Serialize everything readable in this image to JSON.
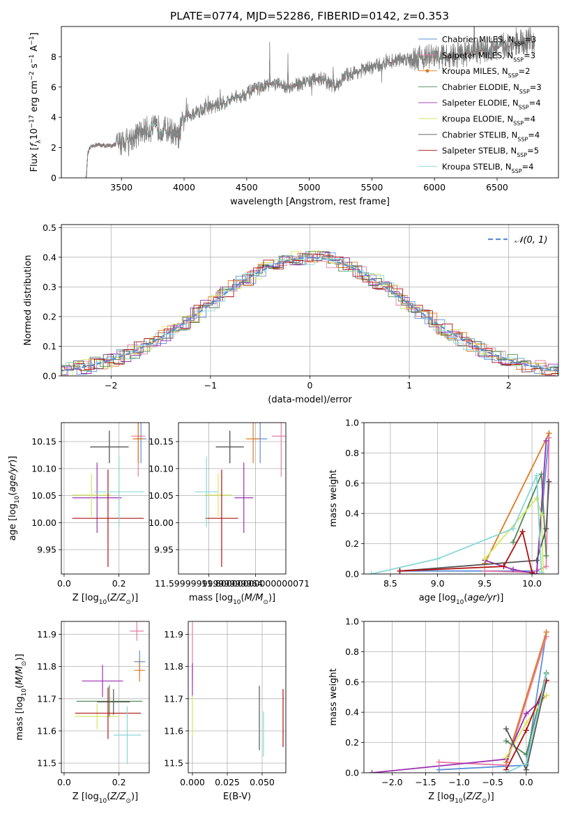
{
  "figure": {
    "title": "PLATE=0774, MJD=52286, FIBERID=0142, z=0.353"
  },
  "colors": {
    "chab_miles": "#5b8fd6",
    "salp_miles": "#e87aa6",
    "krou_miles": "#e07a1f",
    "chab_elodie": "#4f8a55",
    "salp_elodie": "#9b30b0",
    "krou_elodie": "#d6e85a",
    "chab_stelib": "#555555",
    "salp_stelib": "#b01010",
    "krou_stelib": "#88d8d8",
    "gauss": "#5b8fd6",
    "grid": "#b0b0b0"
  },
  "models": [
    {
      "key": "chab_miles",
      "label": "Chabrier MILES, N",
      "sub": "SSP",
      "n": "=3"
    },
    {
      "key": "salp_miles",
      "label": "Salpeter MILES, N",
      "sub": "SSP",
      "n": "=3"
    },
    {
      "key": "krou_miles",
      "label": "Kroupa MILES, N",
      "sub": "SSP",
      "n": "=2"
    },
    {
      "key": "chab_elodie",
      "label": "Chabrier ELODIE, N",
      "sub": "SSP",
      "n": "=3"
    },
    {
      "key": "salp_elodie",
      "label": "Salpeter ELODIE, N",
      "sub": "SSP",
      "n": "=4"
    },
    {
      "key": "krou_elodie",
      "label": "Kroupa ELODIE, N",
      "sub": "SSP",
      "n": "=4"
    },
    {
      "key": "chab_stelib",
      "label": "Chabrier STELIB, N",
      "sub": "SSP",
      "n": "=4"
    },
    {
      "key": "salp_stelib",
      "label": "Salpeter STELIB, N",
      "sub": "SSP",
      "n": "=5"
    },
    {
      "key": "krou_stelib",
      "label": "Kroupa STELIB, N",
      "sub": "SSP",
      "n": "=4"
    }
  ],
  "chart_data": [
    {
      "id": "spectrum",
      "type": "line",
      "xlabel": "wavelength [Angstrom, rest frame]",
      "ylabel": "Flux [f_λ10^-17 erg cm^-2 s^-1 A^-1]",
      "xlim": [
        3020,
        6990
      ],
      "ylim": [
        0,
        10
      ],
      "xticks": [
        3500,
        4000,
        4500,
        5000,
        5500,
        6000,
        6500
      ],
      "yticks": [
        0,
        2,
        4,
        6,
        8
      ],
      "grid": false,
      "legend": "upper right",
      "continuum": [
        [
          3220,
          0
        ],
        [
          3230,
          1.6
        ],
        [
          3250,
          2.0
        ],
        [
          3300,
          2.2
        ],
        [
          3400,
          2.1
        ],
        [
          3500,
          2.3
        ],
        [
          3600,
          2.7
        ],
        [
          3700,
          3.2
        ],
        [
          3800,
          3.3
        ],
        [
          3900,
          3.1
        ],
        [
          3950,
          2.6
        ],
        [
          4000,
          3.9
        ],
        [
          4100,
          4.4
        ],
        [
          4300,
          4.9
        ],
        [
          4500,
          5.6
        ],
        [
          4700,
          6.2
        ],
        [
          4860,
          6.0
        ],
        [
          4950,
          6.3
        ],
        [
          5100,
          6.6
        ],
        [
          5200,
          6.0
        ],
        [
          5300,
          6.8
        ],
        [
          5500,
          7.3
        ],
        [
          5700,
          7.8
        ],
        [
          5900,
          8.0
        ],
        [
          6100,
          8.0
        ],
        [
          6300,
          8.3
        ],
        [
          6500,
          8.6
        ],
        [
          6700,
          9.0
        ],
        [
          6790,
          9.1
        ]
      ]
    },
    {
      "id": "residuals",
      "type": "histogram",
      "xlabel": "(data-model)/error",
      "ylabel": "Normed distribution",
      "xlim": [
        -2.5,
        2.5
      ],
      "ylim": [
        0,
        0.51
      ],
      "xticks": [
        -2,
        -1,
        0,
        1,
        2
      ],
      "yticks": [
        0.0,
        0.1,
        0.2,
        0.3,
        0.4,
        0.5
      ],
      "grid": true,
      "legend_label": "𝒩(0, 1)",
      "bin_width": 0.1
    },
    {
      "id": "age_vs_z",
      "type": "errorbar",
      "xlabel": "Z [log10(Z/Z⊙)]",
      "ylabel": "age  [log10(age/yr)]",
      "xlim": [
        -0.01,
        0.31
      ],
      "ylim": [
        9.905,
        10.185
      ],
      "xticks": [
        0.0,
        0.2
      ],
      "yticks": [
        9.95,
        10.0,
        10.05,
        10.1,
        10.15
      ],
      "points": [
        {
          "key": "chab_miles",
          "x": 0.28,
          "y": 10.155,
          "dx": 0.02,
          "dy": 0.045
        },
        {
          "key": "salp_miles",
          "x": 0.27,
          "y": 10.16,
          "dx": 0.025,
          "dy": 0.075
        },
        {
          "key": "krou_miles",
          "x": 0.27,
          "y": 10.155,
          "dx": 0.02,
          "dy": 0.045
        },
        {
          "key": "chab_elodie",
          "x": 0.165,
          "y": 10.14,
          "dx": 0.07,
          "dy": 0.03
        },
        {
          "key": "salp_elodie",
          "x": 0.12,
          "y": 10.046,
          "dx": 0.09,
          "dy": 0.065
        },
        {
          "key": "krou_elodie",
          "x": 0.1,
          "y": 10.051,
          "dx": 0.07,
          "dy": 0.04
        },
        {
          "key": "chab_stelib",
          "x": 0.165,
          "y": 10.14,
          "dx": 0.07,
          "dy": 0.03
        },
        {
          "key": "salp_stelib",
          "x": 0.16,
          "y": 10.008,
          "dx": 0.13,
          "dy": 0.09
        },
        {
          "key": "krou_stelib",
          "x": 0.2,
          "y": 10.057,
          "dx": 0.09,
          "dy": 0.065
        }
      ]
    },
    {
      "id": "age_vs_mass",
      "type": "errorbar",
      "xlabel": "mass [log10(M/M⊙)]",
      "ylabel": "",
      "xlim": [
        11.47,
        11.93
      ],
      "ylim": [
        9.905,
        10.185
      ],
      "xticks": [
        11.6,
        11.8
      ],
      "yticks": [
        9.95,
        10.0,
        10.05,
        10.1,
        10.15
      ],
      "points": [
        {
          "key": "chab_miles",
          "x": 11.82,
          "y": 10.155,
          "dx": 0.03,
          "dy": 0.045
        },
        {
          "key": "salp_miles",
          "x": 11.91,
          "y": 10.16,
          "dx": 0.04,
          "dy": 0.075
        },
        {
          "key": "krou_miles",
          "x": 11.79,
          "y": 10.155,
          "dx": 0.03,
          "dy": 0.045
        },
        {
          "key": "chab_elodie",
          "x": 11.69,
          "y": 10.14,
          "dx": 0.06,
          "dy": 0.03
        },
        {
          "key": "salp_elodie",
          "x": 11.75,
          "y": 10.046,
          "dx": 0.04,
          "dy": 0.065
        },
        {
          "key": "krou_elodie",
          "x": 11.64,
          "y": 10.051,
          "dx": 0.06,
          "dy": 0.04
        },
        {
          "key": "chab_stelib",
          "x": 11.69,
          "y": 10.14,
          "dx": 0.06,
          "dy": 0.03
        },
        {
          "key": "salp_stelib",
          "x": 11.655,
          "y": 10.008,
          "dx": 0.07,
          "dy": 0.09
        },
        {
          "key": "krou_stelib",
          "x": 11.59,
          "y": 10.057,
          "dx": 0.05,
          "dy": 0.065
        }
      ]
    },
    {
      "id": "mass_weight_vs_age",
      "type": "line",
      "xlabel": "age  [log10(age/yr)]",
      "ylabel": "mass weight",
      "xlim": [
        8.22,
        10.28
      ],
      "ylim": [
        0,
        1.0
      ],
      "xticks": [
        8.5,
        9.0,
        9.5,
        10.0
      ],
      "yticks": [
        0.0,
        0.2,
        0.4,
        0.6,
        0.8,
        1.0
      ],
      "grid": true,
      "series": [
        {
          "key": "chab_miles",
          "x": [
            8.6,
            10.05,
            10.18
          ],
          "y": [
            0.02,
            0.02,
            0.93
          ]
        },
        {
          "key": "salp_miles",
          "x": [
            9.5,
            10.0,
            10.15,
            10.18
          ],
          "y": [
            0.02,
            0.01,
            0.05,
            0.9
          ]
        },
        {
          "key": "krou_miles",
          "x": [
            9.5,
            10.18
          ],
          "y": [
            0.07,
            0.93
          ]
        },
        {
          "key": "chab_elodie",
          "x": [
            9.8,
            10.1,
            10.15
          ],
          "y": [
            0.21,
            0.66,
            0.12
          ]
        },
        {
          "key": "salp_elodie",
          "x": [
            9.5,
            9.8,
            10.05,
            10.15
          ],
          "y": [
            0.09,
            0.03,
            0.0,
            0.88
          ]
        },
        {
          "key": "krou_elodie",
          "x": [
            9.5,
            10.05,
            10.1,
            10.12
          ],
          "y": [
            0.1,
            0.5,
            0.39,
            0.0
          ]
        },
        {
          "key": "chab_stelib",
          "x": [
            8.6,
            10.05,
            10.15,
            10.18
          ],
          "y": [
            0.02,
            0.09,
            0.3,
            0.61
          ]
        },
        {
          "key": "salp_stelib",
          "x": [
            8.6,
            9.7,
            9.9,
            10.0
          ],
          "y": [
            0.02,
            0.05,
            0.28,
            0.01
          ]
        },
        {
          "key": "krou_stelib",
          "x": [
            8.3,
            9.0,
            9.8,
            10.05,
            10.1
          ],
          "y": [
            0.0,
            0.1,
            0.3,
            0.65,
            0.01
          ]
        }
      ]
    },
    {
      "id": "mass_vs_z",
      "type": "errorbar",
      "xlabel": "Z [log10(Z/Z⊙)]",
      "ylabel": "mass [log10(M/M⊙)]",
      "xlim": [
        -0.01,
        0.31
      ],
      "ylim": [
        11.47,
        11.94
      ],
      "xticks": [
        0.0,
        0.2
      ],
      "yticks": [
        11.5,
        11.6,
        11.7,
        11.8,
        11.9
      ],
      "points": [
        {
          "key": "chab_miles",
          "x": 0.275,
          "y": 11.815,
          "dx": 0.02,
          "dy": 0.035
        },
        {
          "key": "salp_miles",
          "x": 0.265,
          "y": 11.91,
          "dx": 0.025,
          "dy": 0.03
        },
        {
          "key": "krou_miles",
          "x": 0.275,
          "y": 11.788,
          "dx": 0.02,
          "dy": 0.035
        },
        {
          "key": "chab_elodie",
          "x": 0.165,
          "y": 11.692,
          "dx": 0.12,
          "dy": 0.05
        },
        {
          "key": "salp_elodie",
          "x": 0.14,
          "y": 11.755,
          "dx": 0.075,
          "dy": 0.05
        },
        {
          "key": "krou_elodie",
          "x": 0.12,
          "y": 11.645,
          "dx": 0.08,
          "dy": 0.04
        },
        {
          "key": "chab_stelib",
          "x": 0.18,
          "y": 11.69,
          "dx": 0.06,
          "dy": 0.04
        },
        {
          "key": "salp_stelib",
          "x": 0.16,
          "y": 11.655,
          "dx": 0.12,
          "dy": 0.08
        },
        {
          "key": "krou_stelib",
          "x": 0.23,
          "y": 11.587,
          "dx": 0.05,
          "dy": 0.09
        }
      ]
    },
    {
      "id": "mass_vs_ebv",
      "type": "errorbar",
      "xlabel": "E(B-V)",
      "ylabel": "",
      "xlim": [
        -0.003,
        0.067
      ],
      "ylim": [
        11.47,
        11.94
      ],
      "xticks": [
        0.0,
        0.025,
        0.05
      ],
      "xtick_labels": [
        "0.000",
        "0.025",
        "0.050"
      ],
      "yticks": [
        11.5,
        11.6,
        11.7,
        11.8,
        11.9
      ],
      "points": [
        {
          "key": "salp_miles",
          "x": 0.0,
          "y": 11.85,
          "dx": 0,
          "dy": 0.09
        },
        {
          "key": "salp_elodie",
          "x": 0.0,
          "y": 11.76,
          "dx": 0,
          "dy": 0.05
        },
        {
          "key": "krou_elodie",
          "x": 0.0,
          "y": 11.645,
          "dx": 0,
          "dy": 0.06
        },
        {
          "key": "chab_stelib",
          "x": 0.048,
          "y": 11.64,
          "dx": 0,
          "dy": 0.1
        },
        {
          "key": "krou_stelib",
          "x": 0.051,
          "y": 11.59,
          "dx": 0,
          "dy": 0.07
        },
        {
          "key": "salp_stelib",
          "x": 0.065,
          "y": 11.64,
          "dx": 0,
          "dy": 0.09
        }
      ]
    },
    {
      "id": "mass_weight_vs_z",
      "type": "line",
      "xlabel": "Z [log10(Z/Z⊙)]",
      "ylabel": "mass weight",
      "xlim": [
        -2.42,
        0.48
      ],
      "ylim": [
        0,
        1.0
      ],
      "xticks": [
        -2.0,
        -1.5,
        -1.0,
        -0.5,
        0.0
      ],
      "yticks": [
        0.0,
        0.2,
        0.4,
        0.6,
        0.8,
        1.0
      ],
      "grid": true,
      "series": [
        {
          "key": "chab_miles",
          "x": [
            -1.3,
            0.0,
            0.3
          ],
          "y": [
            0.02,
            0.05,
            0.93
          ]
        },
        {
          "key": "salp_miles",
          "x": [
            -1.3,
            -0.3,
            0.3
          ],
          "y": [
            0.07,
            0.05,
            0.9
          ]
        },
        {
          "key": "krou_miles",
          "x": [
            -0.3,
            0.3
          ],
          "y": [
            0.07,
            0.93
          ]
        },
        {
          "key": "chab_elodie",
          "x": [
            -0.3,
            0.0,
            0.3
          ],
          "y": [
            0.21,
            0.12,
            0.66
          ]
        },
        {
          "key": "salp_elodie",
          "x": [
            -2.3,
            -0.3,
            0.0,
            0.3
          ],
          "y": [
            0.0,
            0.09,
            0.39,
            0.51
          ]
        },
        {
          "key": "krou_elodie",
          "x": [
            -0.3,
            0.0,
            0.3
          ],
          "y": [
            0.1,
            0.33,
            0.51
          ]
        },
        {
          "key": "chab_stelib",
          "x": [
            -0.3,
            0.0,
            0.3
          ],
          "y": [
            0.29,
            0.02,
            0.61
          ]
        },
        {
          "key": "salp_stelib",
          "x": [
            -0.3,
            0.0,
            0.3
          ],
          "y": [
            0.02,
            0.28,
            0.61
          ]
        },
        {
          "key": "krou_stelib",
          "x": [
            -0.3,
            0.0,
            0.3
          ],
          "y": [
            0.0,
            0.06,
            0.65
          ]
        }
      ]
    }
  ]
}
